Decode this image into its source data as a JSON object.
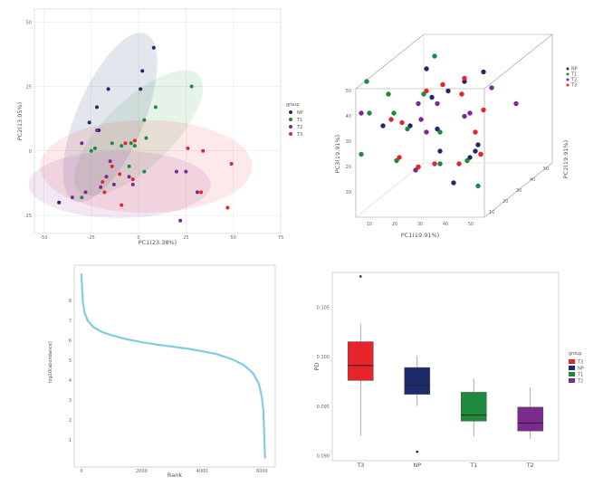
{
  "colors": {
    "NP": "#1f2a6b",
    "T1": "#1d8a3c",
    "T2": "#7b2a8e",
    "T3": "#e8242b",
    "curve": "#7fcde3"
  },
  "chart_data": [
    {
      "type": "scatter",
      "title": "",
      "xlabel": "PC1(23.38%)",
      "ylabel": "PC2(13.05%)",
      "xlim": [
        -55,
        75
      ],
      "ylim": [
        -32,
        55
      ],
      "xticks": [
        "-50",
        "-25",
        "0",
        "25",
        "50",
        "75"
      ],
      "yticks": [
        "50",
        "25",
        "0",
        "-25"
      ],
      "grid": true,
      "legend": {
        "title": "group",
        "position": "right",
        "entries": [
          "NP",
          "T1",
          "T2",
          "T3"
        ]
      },
      "series": [
        {
          "name": "NP",
          "points": [
            [
              8,
              40
            ],
            [
              2,
              31
            ],
            [
              1,
              24
            ],
            [
              -16,
              24
            ],
            [
              -22,
              17
            ],
            [
              -26,
              11
            ],
            [
              -21,
              8
            ],
            [
              -42,
              -20
            ]
          ]
        },
        {
          "name": "T1",
          "points": [
            [
              28,
              25
            ],
            [
              3,
              12
            ],
            [
              9,
              17
            ],
            [
              -14,
              3
            ],
            [
              -9,
              2
            ],
            [
              -4,
              3
            ],
            [
              -25,
              0
            ],
            [
              -23,
              1
            ],
            [
              4,
              5
            ],
            [
              -2,
              2
            ],
            [
              -5,
              -6
            ],
            [
              3,
              -8
            ],
            [
              -30,
              -18
            ]
          ]
        },
        {
          "name": "T2",
          "points": [
            [
              -22,
              8
            ],
            [
              -30,
              3
            ],
            [
              -15,
              -4
            ],
            [
              -17,
              -10
            ],
            [
              -20,
              -14
            ],
            [
              -13,
              -13
            ],
            [
              -5,
              -10
            ],
            [
              -3,
              -13
            ],
            [
              20,
              -8
            ],
            [
              25,
              -8
            ],
            [
              31,
              -16
            ],
            [
              -28,
              -16
            ],
            [
              -35,
              -18
            ],
            [
              22,
              -27
            ]
          ]
        },
        {
          "name": "T3",
          "points": [
            [
              -2,
              4
            ],
            [
              -7,
              3
            ],
            [
              26,
              1
            ],
            [
              34,
              0
            ],
            [
              49,
              -5
            ],
            [
              -14,
              -6
            ],
            [
              -10,
              -9
            ],
            [
              -3,
              -11
            ],
            [
              -19,
              -12
            ],
            [
              -18,
              -16
            ],
            [
              -9,
              -21
            ],
            [
              47,
              -22
            ],
            [
              33,
              -16
            ]
          ]
        }
      ]
    },
    {
      "type": "scatter",
      "title": "",
      "xlabel": "PC1(19.91%)",
      "ylabel": "PC3(19.91%)",
      "zlabel": "PC2(19.91%)",
      "xticks": [
        "10",
        "20",
        "30",
        "40",
        "50"
      ],
      "yticks": [
        "10",
        "20",
        "30",
        "40",
        "50"
      ],
      "zticks": [
        "10",
        "20",
        "30",
        "40",
        "50"
      ],
      "legend": {
        "title": "",
        "position": "top-right",
        "entries": [
          "NP",
          "T1",
          "T2",
          "T3"
        ]
      },
      "series": [
        {
          "name": "NP",
          "points": [
            [
              10,
              26
            ],
            [
              20,
              26
            ],
            [
              30,
              25
            ],
            [
              45,
              20
            ],
            [
              44,
              18
            ],
            [
              46,
              17
            ],
            [
              42,
              16
            ],
            [
              31,
              18
            ],
            [
              36,
              8
            ],
            [
              28,
              35
            ],
            [
              26,
              44
            ],
            [
              34,
              37
            ],
            [
              40,
              40
            ],
            [
              47,
              43
            ]
          ]
        },
        {
          "name": "T1",
          "points": [
            [
              29,
              48
            ],
            [
              4,
              40
            ],
            [
              5,
              30
            ],
            [
              12,
              36
            ],
            [
              14,
              30
            ],
            [
              19,
              25
            ],
            [
              25,
              36
            ],
            [
              31,
              14
            ],
            [
              15,
              15
            ],
            [
              2,
              17
            ],
            [
              41,
              15
            ],
            [
              45,
              7
            ],
            [
              23,
              13
            ],
            [
              31,
              24
            ]
          ]
        },
        {
          "name": "T2",
          "points": [
            [
              2,
              30
            ],
            [
              23,
              33
            ],
            [
              24,
              28
            ],
            [
              30,
              33
            ],
            [
              42,
              30
            ],
            [
              50,
              38
            ],
            [
              59,
              33
            ],
            [
              26,
              24
            ],
            [
              22,
              12
            ],
            [
              40,
              29
            ]
          ]
        },
        {
          "name": "T3",
          "points": [
            [
              13,
              28
            ],
            [
              17,
              27
            ],
            [
              16,
              16
            ],
            [
              23,
              13
            ],
            [
              29,
              14
            ],
            [
              38,
              14
            ],
            [
              46,
              17
            ],
            [
              44,
              24
            ],
            [
              47,
              31
            ],
            [
              39,
              36
            ],
            [
              40,
              41
            ],
            [
              32,
              39
            ],
            [
              26,
              37
            ]
          ]
        }
      ]
    },
    {
      "type": "scatter",
      "title": "",
      "xlabel": "Rank",
      "ylabel": "log10(abundance)",
      "xlim": [
        0,
        6200
      ],
      "ylim": [
        0,
        9.4
      ],
      "xticks": [
        "0",
        "2000",
        "4000",
        "6000"
      ],
      "yticks": [
        "8",
        "7",
        "6",
        "5",
        "4",
        "3",
        "2",
        "1"
      ],
      "x": [
        0,
        20,
        50,
        100,
        200,
        400,
        700,
        1000,
        1500,
        2000,
        2500,
        3000,
        3500,
        4000,
        4500,
        5000,
        5400,
        5700,
        5900,
        6000,
        6050,
        6100
      ],
      "values": [
        9.3,
        8.6,
        7.9,
        7.4,
        7.0,
        6.65,
        6.4,
        6.25,
        6.05,
        5.9,
        5.78,
        5.68,
        5.58,
        5.45,
        5.3,
        5.05,
        4.75,
        4.35,
        3.8,
        3.1,
        2.4,
        0.1
      ]
    },
    {
      "type": "box",
      "title": "",
      "xlabel": "",
      "ylabel": "PD",
      "ylim": [
        0.0895,
        0.1085
      ],
      "yticks": [
        "0.105",
        "0.100",
        "0.095",
        "0.090"
      ],
      "categories": [
        "T3",
        "NP",
        "T1",
        "T2"
      ],
      "legend": {
        "title": "group",
        "position": "right",
        "entries": [
          "T3",
          "NP",
          "T1",
          "T2"
        ]
      },
      "boxes": [
        {
          "group": "T3",
          "min": 0.092,
          "q1": 0.0976,
          "median": 0.0991,
          "q3": 0.1015,
          "max": 0.1033,
          "outliers": [
            0.1081
          ]
        },
        {
          "group": "NP",
          "min": 0.095,
          "q1": 0.0962,
          "median": 0.0971,
          "q3": 0.0989,
          "max": 0.1001,
          "outliers": [
            0.0904
          ]
        },
        {
          "group": "T1",
          "min": 0.0919,
          "q1": 0.0935,
          "median": 0.0941,
          "q3": 0.0964,
          "max": 0.0978,
          "outliers": []
        },
        {
          "group": "T2",
          "min": 0.0917,
          "q1": 0.0925,
          "median": 0.0933,
          "q3": 0.0949,
          "max": 0.0969,
          "outliers": []
        }
      ]
    }
  ]
}
